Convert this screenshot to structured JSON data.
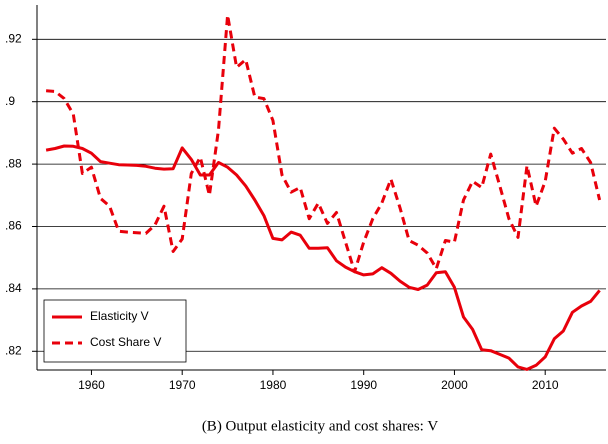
{
  "chart_data": {
    "type": "line",
    "caption": "(B) Output elasticity and cost shares: V",
    "x": [
      1955,
      1956,
      1957,
      1958,
      1959,
      1960,
      1961,
      1962,
      1963,
      1964,
      1965,
      1966,
      1967,
      1968,
      1969,
      1970,
      1971,
      1972,
      1973,
      1974,
      1975,
      1976,
      1977,
      1978,
      1979,
      1980,
      1981,
      1982,
      1983,
      1984,
      1985,
      1986,
      1987,
      1988,
      1989,
      1990,
      1991,
      1992,
      1993,
      1994,
      1995,
      1996,
      1997,
      1998,
      1999,
      2000,
      2001,
      2002,
      2003,
      2004,
      2005,
      2006,
      2007,
      2008,
      2009,
      2010,
      2011,
      2012,
      2013,
      2014,
      2015,
      2016
    ],
    "series": [
      {
        "name": "Elasticity V",
        "color": "#e8000b",
        "dash": false,
        "values": [
          0.8845,
          0.885,
          0.8858,
          0.8857,
          0.885,
          0.8835,
          0.8808,
          0.8803,
          0.8798,
          0.8797,
          0.8796,
          0.8793,
          0.8787,
          0.8784,
          0.8785,
          0.8852,
          0.8815,
          0.8765,
          0.8765,
          0.8805,
          0.879,
          0.8765,
          0.873,
          0.8685,
          0.8635,
          0.8562,
          0.8557,
          0.8582,
          0.8572,
          0.853,
          0.853,
          0.8532,
          0.849,
          0.847,
          0.8455,
          0.8445,
          0.8448,
          0.8468,
          0.845,
          0.8425,
          0.8405,
          0.8398,
          0.8412,
          0.8452,
          0.8455,
          0.8405,
          0.831,
          0.827,
          0.8205,
          0.8202,
          0.819,
          0.8178,
          0.815,
          0.8142,
          0.8155,
          0.8182,
          0.824,
          0.8265,
          0.8325,
          0.8345,
          0.836,
          0.8395
        ]
      },
      {
        "name": "Cost Share V",
        "color": "#e8000b",
        "dash": true,
        "values": [
          0.9035,
          0.9033,
          0.901,
          0.896,
          0.877,
          0.879,
          0.869,
          0.8665,
          0.8585,
          0.8582,
          0.858,
          0.8578,
          0.8605,
          0.8665,
          0.852,
          0.856,
          0.877,
          0.8822,
          0.87,
          0.891,
          0.9278,
          0.911,
          0.9135,
          0.9015,
          0.901,
          0.894,
          0.8765,
          0.871,
          0.8725,
          0.8625,
          0.8675,
          0.861,
          0.8645,
          0.855,
          0.8455,
          0.855,
          0.8625,
          0.8675,
          0.8752,
          0.866,
          0.8555,
          0.854,
          0.8515,
          0.8465,
          0.8555,
          0.855,
          0.8685,
          0.8745,
          0.8725,
          0.8832,
          0.873,
          0.8625,
          0.8565,
          0.8795,
          0.8665,
          0.8745,
          0.8915,
          0.888,
          0.8835,
          0.885,
          0.8805,
          0.8685
        ]
      }
    ],
    "xlim": [
      1954,
      2016.7
    ],
    "ylim": [
      0.814,
      0.931
    ],
    "xticks": [
      1960,
      1970,
      1980,
      1990,
      2000,
      2010
    ],
    "yticks": [
      {
        "value": 0.82,
        "label": ".82"
      },
      {
        "value": 0.84,
        "label": ".84"
      },
      {
        "value": 0.86,
        "label": ".86"
      },
      {
        "value": 0.88,
        "label": ".88"
      },
      {
        "value": 0.9,
        "label": ".9"
      },
      {
        "value": 0.92,
        "label": ".92"
      }
    ],
    "grid": true,
    "legend": "bottom-left"
  }
}
